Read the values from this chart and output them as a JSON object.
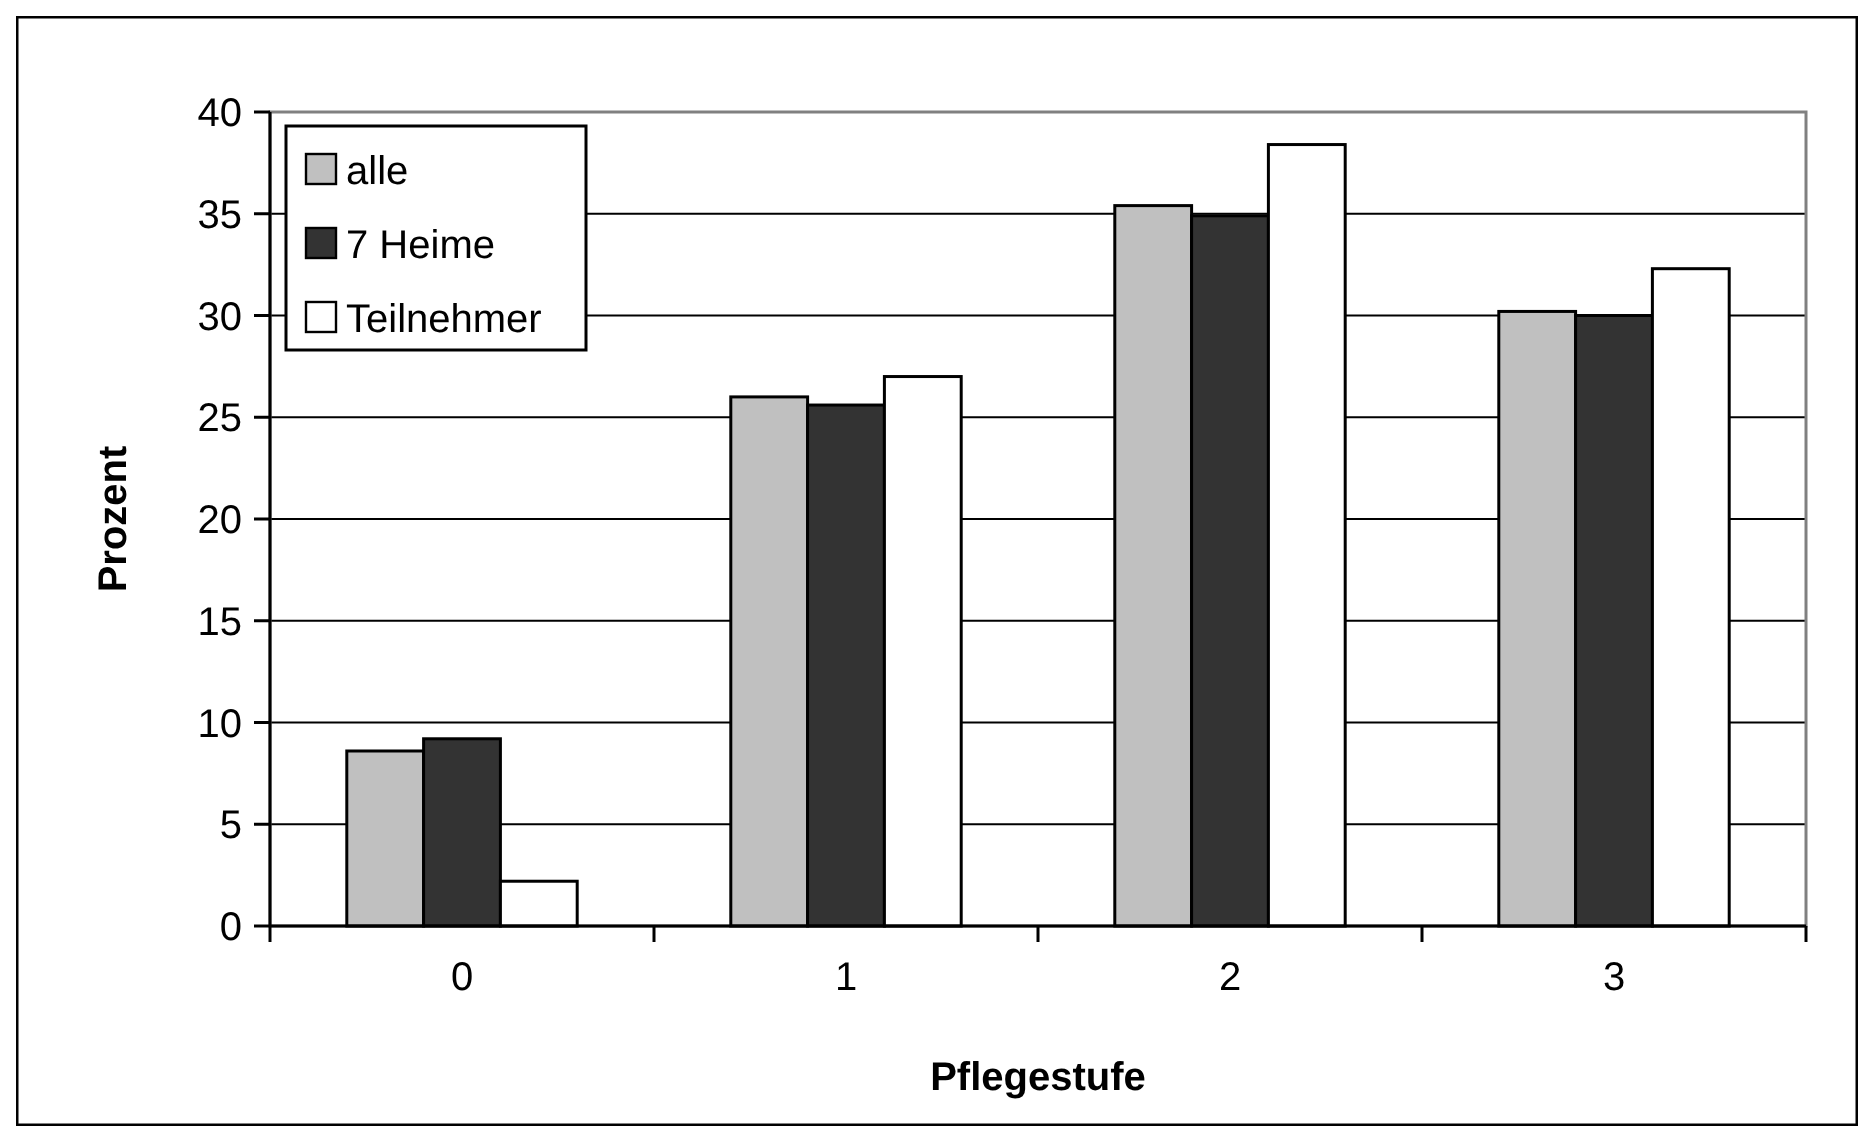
{
  "chart_data": {
    "type": "bar",
    "xlabel": "Pflegestufe",
    "ylabel": "Prozent",
    "categories": [
      "0",
      "1",
      "2",
      "3"
    ],
    "series": [
      {
        "name": "alle",
        "color": "#c0c0c0",
        "values": [
          8.6,
          26,
          35.4,
          30.2
        ]
      },
      {
        "name": "7 Heime",
        "color": "#333333",
        "values": [
          9.2,
          25.6,
          34.9,
          30
        ]
      },
      {
        "name": "Teilnehmer",
        "color": "#ffffff",
        "values": [
          2.2,
          27,
          38.4,
          32.3
        ]
      }
    ],
    "ylim": [
      0,
      40
    ],
    "yticks": [
      0,
      5,
      10,
      15,
      20,
      25,
      30,
      35,
      40
    ],
    "grid": "y",
    "legend": "top left"
  }
}
